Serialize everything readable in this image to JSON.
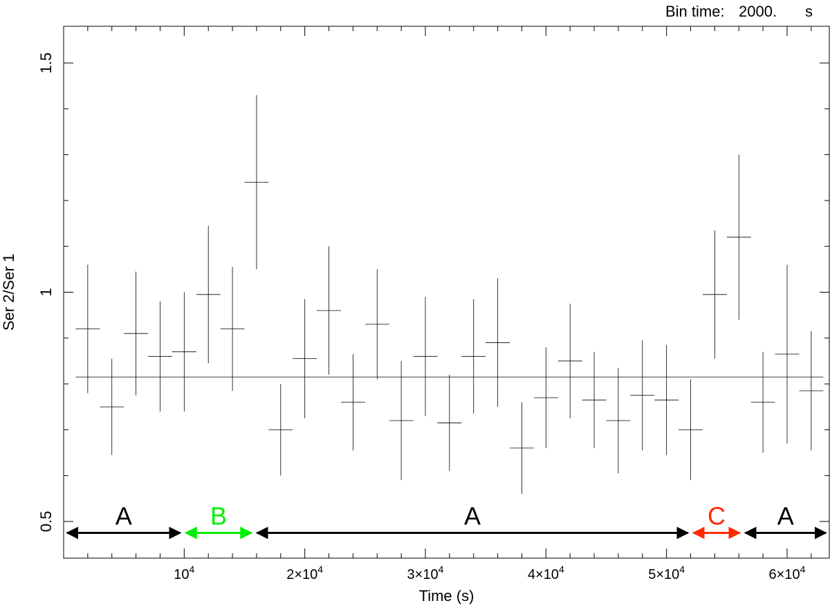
{
  "header": {
    "bin_time_label": "Bin time:",
    "bin_time_value": "2000.",
    "bin_time_unit": "s"
  },
  "chart_data": {
    "type": "scatter",
    "title": "",
    "xlabel": "Time (s)",
    "ylabel": "Ser 2/Ser 1",
    "xlim": [
      0,
      63500
    ],
    "ylim": [
      0.42,
      1.58
    ],
    "x_ticks": [
      {
        "value": 10000,
        "label_base": "10",
        "label_exp": "4"
      },
      {
        "value": 20000,
        "label_base": "2×10",
        "label_exp": "4"
      },
      {
        "value": 30000,
        "label_base": "3×10",
        "label_exp": "4"
      },
      {
        "value": 40000,
        "label_base": "4×10",
        "label_exp": "4"
      },
      {
        "value": 50000,
        "label_base": "5×10",
        "label_exp": "4"
      },
      {
        "value": 60000,
        "label_base": "6×10",
        "label_exp": "4"
      }
    ],
    "y_ticks": [
      {
        "value": 0.5,
        "label": "0.5"
      },
      {
        "value": 1.0,
        "label": "1"
      },
      {
        "value": 1.5,
        "label": "1.5"
      }
    ],
    "x_halfwidth": 1000,
    "mean_ratio": 0.815,
    "series": [
      {
        "points": [
          {
            "x": 2000,
            "y": 0.92,
            "err": 0.14
          },
          {
            "x": 4000,
            "y": 0.75,
            "err": 0.105
          },
          {
            "x": 6000,
            "y": 0.91,
            "err": 0.135
          },
          {
            "x": 8000,
            "y": 0.86,
            "err": 0.12
          },
          {
            "x": 10000,
            "y": 0.87,
            "err": 0.13
          },
          {
            "x": 12000,
            "y": 0.995,
            "err": 0.15
          },
          {
            "x": 14000,
            "y": 0.92,
            "err": 0.135
          },
          {
            "x": 16000,
            "y": 1.24,
            "err": 0.19
          },
          {
            "x": 18000,
            "y": 0.7,
            "err": 0.1
          },
          {
            "x": 20000,
            "y": 0.855,
            "err": 0.13
          },
          {
            "x": 22000,
            "y": 0.96,
            "err": 0.14
          },
          {
            "x": 24000,
            "y": 0.76,
            "err": 0.105
          },
          {
            "x": 26000,
            "y": 0.93,
            "err": 0.12
          },
          {
            "x": 28000,
            "y": 0.72,
            "err": 0.13
          },
          {
            "x": 30000,
            "y": 0.86,
            "err": 0.13
          },
          {
            "x": 32000,
            "y": 0.715,
            "err": 0.105
          },
          {
            "x": 34000,
            "y": 0.86,
            "err": 0.125
          },
          {
            "x": 36000,
            "y": 0.89,
            "err": 0.14
          },
          {
            "x": 38000,
            "y": 0.66,
            "err": 0.1
          },
          {
            "x": 40000,
            "y": 0.77,
            "err": 0.11
          },
          {
            "x": 42000,
            "y": 0.85,
            "err": 0.125
          },
          {
            "x": 44000,
            "y": 0.765,
            "err": 0.105
          },
          {
            "x": 46000,
            "y": 0.72,
            "err": 0.115
          },
          {
            "x": 48000,
            "y": 0.775,
            "err": 0.12
          },
          {
            "x": 50000,
            "y": 0.765,
            "err": 0.12
          },
          {
            "x": 52000,
            "y": 0.7,
            "err": 0.11
          },
          {
            "x": 54000,
            "y": 0.995,
            "err": 0.14
          },
          {
            "x": 56000,
            "y": 1.12,
            "err": 0.18
          },
          {
            "x": 58000,
            "y": 0.76,
            "err": 0.11
          },
          {
            "x": 60000,
            "y": 0.865,
            "err": 0.195
          },
          {
            "x": 62000,
            "y": 0.785,
            "err": 0.13
          }
        ]
      }
    ],
    "intervals": [
      {
        "label": "A",
        "color": "#000000",
        "x0": 0,
        "x1": 9900
      },
      {
        "label": "B",
        "color": "#00ee00",
        "x0": 9900,
        "x1": 15800
      },
      {
        "label": "A",
        "color": "#000000",
        "x0": 15800,
        "x1": 52000
      },
      {
        "label": "C",
        "color": "#ff2a00",
        "x0": 52000,
        "x1": 56300
      },
      {
        "label": "A",
        "color": "#000000",
        "x0": 56300,
        "x1": 63500
      }
    ],
    "interval_y": 0.475
  }
}
